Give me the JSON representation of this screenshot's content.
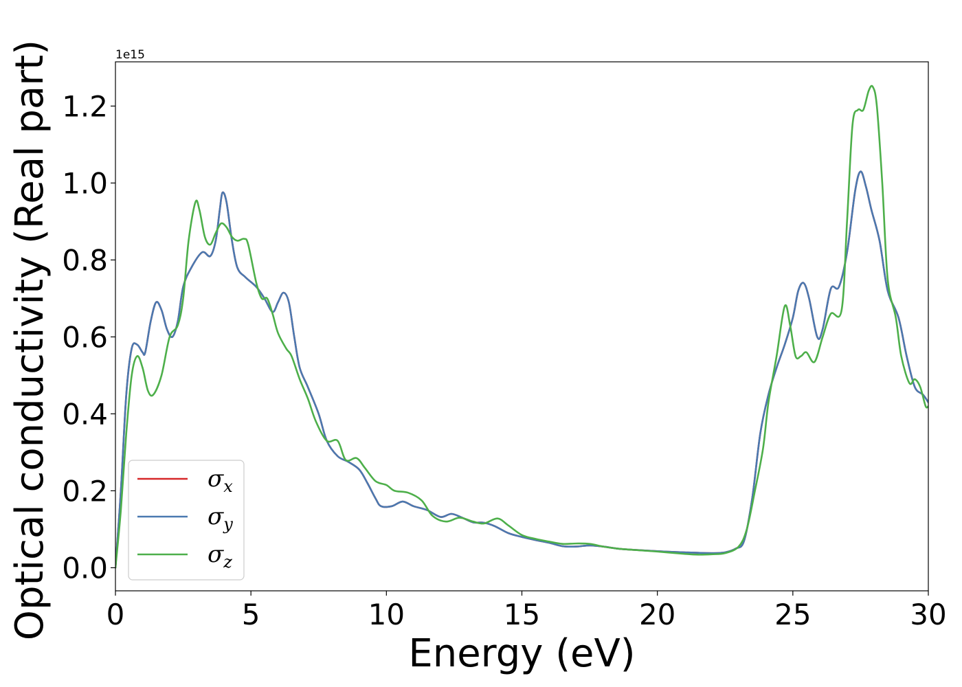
{
  "chart_data": {
    "type": "line",
    "title": "",
    "xlabel": "Energy (eV)",
    "ylabel": "Optical conductivity (Real part)",
    "y_offset_label": "1e15",
    "xlim": [
      0,
      30
    ],
    "ylim": [
      -0.06,
      1.315
    ],
    "x_ticks": [
      0,
      5,
      10,
      15,
      20,
      25,
      30
    ],
    "x_tick_labels": [
      "0",
      "5",
      "10",
      "15",
      "20",
      "25",
      "30"
    ],
    "y_ticks": [
      0.0,
      0.2,
      0.4,
      0.6,
      0.8,
      1.0,
      1.2
    ],
    "y_tick_labels": [
      "0.0",
      "0.2",
      "0.4",
      "0.6",
      "0.8",
      "1.0",
      "1.2"
    ],
    "grid": false,
    "legend_position": "lower-left",
    "series": [
      {
        "name": "σx",
        "legend_symbol": "σ",
        "legend_subscript": "x",
        "color": "#d62728",
        "points": [
          [
            0,
            0.0
          ],
          [
            0.2,
            0.2
          ],
          [
            0.4,
            0.45
          ],
          [
            0.6,
            0.57
          ],
          [
            0.8,
            0.58
          ],
          [
            1.0,
            0.56
          ],
          [
            1.1,
            0.56
          ],
          [
            1.3,
            0.64
          ],
          [
            1.5,
            0.69
          ],
          [
            1.7,
            0.67
          ],
          [
            1.9,
            0.62
          ],
          [
            2.1,
            0.6
          ],
          [
            2.3,
            0.64
          ],
          [
            2.5,
            0.73
          ],
          [
            2.8,
            0.78
          ],
          [
            3.2,
            0.82
          ],
          [
            3.5,
            0.81
          ],
          [
            3.7,
            0.85
          ],
          [
            3.85,
            0.93
          ],
          [
            3.95,
            0.975
          ],
          [
            4.1,
            0.95
          ],
          [
            4.3,
            0.85
          ],
          [
            4.5,
            0.78
          ],
          [
            4.8,
            0.755
          ],
          [
            5.2,
            0.73
          ],
          [
            5.5,
            0.7
          ],
          [
            5.8,
            0.665
          ],
          [
            6.0,
            0.69
          ],
          [
            6.2,
            0.715
          ],
          [
            6.4,
            0.69
          ],
          [
            6.6,
            0.6
          ],
          [
            6.8,
            0.52
          ],
          [
            7.1,
            0.47
          ],
          [
            7.5,
            0.4
          ],
          [
            7.8,
            0.33
          ],
          [
            8.2,
            0.29
          ],
          [
            8.6,
            0.275
          ],
          [
            9.0,
            0.255
          ],
          [
            9.3,
            0.22
          ],
          [
            9.6,
            0.18
          ],
          [
            9.8,
            0.16
          ],
          [
            10.2,
            0.16
          ],
          [
            10.6,
            0.172
          ],
          [
            11.0,
            0.16
          ],
          [
            11.5,
            0.15
          ],
          [
            12.0,
            0.132
          ],
          [
            12.4,
            0.14
          ],
          [
            12.8,
            0.13
          ],
          [
            13.2,
            0.118
          ],
          [
            13.6,
            0.117
          ],
          [
            14.0,
            0.108
          ],
          [
            14.5,
            0.09
          ],
          [
            15.0,
            0.08
          ],
          [
            15.5,
            0.072
          ],
          [
            16.0,
            0.065
          ],
          [
            16.5,
            0.056
          ],
          [
            17.0,
            0.055
          ],
          [
            17.5,
            0.058
          ],
          [
            18.0,
            0.055
          ],
          [
            18.5,
            0.05
          ],
          [
            19.0,
            0.047
          ],
          [
            20.0,
            0.043
          ],
          [
            21.0,
            0.04
          ],
          [
            22.0,
            0.038
          ],
          [
            22.5,
            0.04
          ],
          [
            22.9,
            0.05
          ],
          [
            23.2,
            0.07
          ],
          [
            23.5,
            0.18
          ],
          [
            23.8,
            0.35
          ],
          [
            24.1,
            0.45
          ],
          [
            24.4,
            0.52
          ],
          [
            24.7,
            0.58
          ],
          [
            25.0,
            0.65
          ],
          [
            25.2,
            0.72
          ],
          [
            25.4,
            0.74
          ],
          [
            25.6,
            0.7
          ],
          [
            25.9,
            0.6
          ],
          [
            26.1,
            0.62
          ],
          [
            26.4,
            0.725
          ],
          [
            26.7,
            0.73
          ],
          [
            27.0,
            0.82
          ],
          [
            27.3,
            0.98
          ],
          [
            27.5,
            1.03
          ],
          [
            27.7,
            0.99
          ],
          [
            27.9,
            0.93
          ],
          [
            28.2,
            0.85
          ],
          [
            28.5,
            0.72
          ],
          [
            28.9,
            0.65
          ],
          [
            29.2,
            0.55
          ],
          [
            29.5,
            0.47
          ],
          [
            29.8,
            0.45
          ],
          [
            30.0,
            0.43
          ]
        ]
      },
      {
        "name": "σy",
        "legend_symbol": "σ",
        "legend_subscript": "y",
        "color": "#4a79b0",
        "points": [
          [
            0,
            0.0
          ],
          [
            0.2,
            0.2
          ],
          [
            0.4,
            0.45
          ],
          [
            0.6,
            0.57
          ],
          [
            0.8,
            0.58
          ],
          [
            1.0,
            0.56
          ],
          [
            1.1,
            0.56
          ],
          [
            1.3,
            0.64
          ],
          [
            1.5,
            0.69
          ],
          [
            1.7,
            0.67
          ],
          [
            1.9,
            0.62
          ],
          [
            2.1,
            0.6
          ],
          [
            2.3,
            0.64
          ],
          [
            2.5,
            0.73
          ],
          [
            2.8,
            0.78
          ],
          [
            3.2,
            0.82
          ],
          [
            3.5,
            0.81
          ],
          [
            3.7,
            0.85
          ],
          [
            3.85,
            0.93
          ],
          [
            3.95,
            0.975
          ],
          [
            4.1,
            0.95
          ],
          [
            4.3,
            0.85
          ],
          [
            4.5,
            0.78
          ],
          [
            4.8,
            0.755
          ],
          [
            5.2,
            0.73
          ],
          [
            5.5,
            0.7
          ],
          [
            5.8,
            0.665
          ],
          [
            6.0,
            0.69
          ],
          [
            6.2,
            0.715
          ],
          [
            6.4,
            0.69
          ],
          [
            6.6,
            0.6
          ],
          [
            6.8,
            0.52
          ],
          [
            7.1,
            0.47
          ],
          [
            7.5,
            0.4
          ],
          [
            7.8,
            0.33
          ],
          [
            8.2,
            0.29
          ],
          [
            8.6,
            0.275
          ],
          [
            9.0,
            0.255
          ],
          [
            9.3,
            0.22
          ],
          [
            9.6,
            0.18
          ],
          [
            9.8,
            0.16
          ],
          [
            10.2,
            0.16
          ],
          [
            10.6,
            0.172
          ],
          [
            11.0,
            0.16
          ],
          [
            11.5,
            0.15
          ],
          [
            12.0,
            0.132
          ],
          [
            12.4,
            0.14
          ],
          [
            12.8,
            0.13
          ],
          [
            13.2,
            0.118
          ],
          [
            13.6,
            0.117
          ],
          [
            14.0,
            0.108
          ],
          [
            14.5,
            0.09
          ],
          [
            15.0,
            0.08
          ],
          [
            15.5,
            0.072
          ],
          [
            16.0,
            0.065
          ],
          [
            16.5,
            0.056
          ],
          [
            17.0,
            0.055
          ],
          [
            17.5,
            0.058
          ],
          [
            18.0,
            0.055
          ],
          [
            18.5,
            0.05
          ],
          [
            19.0,
            0.047
          ],
          [
            20.0,
            0.043
          ],
          [
            21.0,
            0.04
          ],
          [
            22.0,
            0.038
          ],
          [
            22.5,
            0.04
          ],
          [
            22.9,
            0.05
          ],
          [
            23.2,
            0.07
          ],
          [
            23.5,
            0.18
          ],
          [
            23.8,
            0.35
          ],
          [
            24.1,
            0.45
          ],
          [
            24.4,
            0.52
          ],
          [
            24.7,
            0.58
          ],
          [
            25.0,
            0.65
          ],
          [
            25.2,
            0.72
          ],
          [
            25.4,
            0.74
          ],
          [
            25.6,
            0.7
          ],
          [
            25.9,
            0.6
          ],
          [
            26.1,
            0.62
          ],
          [
            26.4,
            0.725
          ],
          [
            26.7,
            0.73
          ],
          [
            27.0,
            0.82
          ],
          [
            27.3,
            0.98
          ],
          [
            27.5,
            1.03
          ],
          [
            27.7,
            0.99
          ],
          [
            27.9,
            0.93
          ],
          [
            28.2,
            0.85
          ],
          [
            28.5,
            0.72
          ],
          [
            28.9,
            0.65
          ],
          [
            29.2,
            0.55
          ],
          [
            29.5,
            0.47
          ],
          [
            29.8,
            0.45
          ],
          [
            30.0,
            0.43
          ]
        ]
      },
      {
        "name": "σz",
        "legend_symbol": "σ",
        "legend_subscript": "z",
        "color": "#4daf4a",
        "points": [
          [
            0,
            0.0
          ],
          [
            0.2,
            0.15
          ],
          [
            0.4,
            0.35
          ],
          [
            0.6,
            0.5
          ],
          [
            0.8,
            0.55
          ],
          [
            1.0,
            0.52
          ],
          [
            1.2,
            0.46
          ],
          [
            1.4,
            0.45
          ],
          [
            1.7,
            0.5
          ],
          [
            2.0,
            0.6
          ],
          [
            2.3,
            0.63
          ],
          [
            2.5,
            0.7
          ],
          [
            2.7,
            0.85
          ],
          [
            2.95,
            0.95
          ],
          [
            3.1,
            0.93
          ],
          [
            3.3,
            0.86
          ],
          [
            3.5,
            0.84
          ],
          [
            3.7,
            0.87
          ],
          [
            3.9,
            0.895
          ],
          [
            4.1,
            0.885
          ],
          [
            4.3,
            0.86
          ],
          [
            4.5,
            0.85
          ],
          [
            4.75,
            0.855
          ],
          [
            4.9,
            0.84
          ],
          [
            5.2,
            0.74
          ],
          [
            5.4,
            0.7
          ],
          [
            5.6,
            0.7
          ],
          [
            5.8,
            0.66
          ],
          [
            6.0,
            0.61
          ],
          [
            6.3,
            0.57
          ],
          [
            6.5,
            0.55
          ],
          [
            6.8,
            0.49
          ],
          [
            7.1,
            0.44
          ],
          [
            7.4,
            0.38
          ],
          [
            7.8,
            0.33
          ],
          [
            8.2,
            0.33
          ],
          [
            8.5,
            0.28
          ],
          [
            8.9,
            0.285
          ],
          [
            9.2,
            0.26
          ],
          [
            9.6,
            0.225
          ],
          [
            10.0,
            0.215
          ],
          [
            10.3,
            0.2
          ],
          [
            10.8,
            0.195
          ],
          [
            11.3,
            0.175
          ],
          [
            11.7,
            0.135
          ],
          [
            12.2,
            0.12
          ],
          [
            12.7,
            0.13
          ],
          [
            13.2,
            0.12
          ],
          [
            13.6,
            0.115
          ],
          [
            14.1,
            0.128
          ],
          [
            14.5,
            0.11
          ],
          [
            15.0,
            0.085
          ],
          [
            15.5,
            0.075
          ],
          [
            16.0,
            0.068
          ],
          [
            16.5,
            0.062
          ],
          [
            17.0,
            0.063
          ],
          [
            17.5,
            0.062
          ],
          [
            18.0,
            0.055
          ],
          [
            18.5,
            0.05
          ],
          [
            19.0,
            0.047
          ],
          [
            20.0,
            0.042
          ],
          [
            21.0,
            0.036
          ],
          [
            21.5,
            0.034
          ],
          [
            22.0,
            0.035
          ],
          [
            22.5,
            0.038
          ],
          [
            23.0,
            0.055
          ],
          [
            23.3,
            0.1
          ],
          [
            23.6,
            0.2
          ],
          [
            23.9,
            0.31
          ],
          [
            24.1,
            0.43
          ],
          [
            24.4,
            0.55
          ],
          [
            24.7,
            0.68
          ],
          [
            24.9,
            0.63
          ],
          [
            25.1,
            0.55
          ],
          [
            25.3,
            0.55
          ],
          [
            25.5,
            0.56
          ],
          [
            25.8,
            0.535
          ],
          [
            26.1,
            0.6
          ],
          [
            26.4,
            0.66
          ],
          [
            26.8,
            0.67
          ],
          [
            27.0,
            0.9
          ],
          [
            27.2,
            1.15
          ],
          [
            27.4,
            1.19
          ],
          [
            27.6,
            1.19
          ],
          [
            27.8,
            1.24
          ],
          [
            27.95,
            1.25
          ],
          [
            28.1,
            1.2
          ],
          [
            28.3,
            1.0
          ],
          [
            28.5,
            0.75
          ],
          [
            28.8,
            0.65
          ],
          [
            29.0,
            0.55
          ],
          [
            29.3,
            0.48
          ],
          [
            29.5,
            0.49
          ],
          [
            29.7,
            0.47
          ],
          [
            29.9,
            0.42
          ],
          [
            30.0,
            0.42
          ]
        ]
      }
    ]
  }
}
